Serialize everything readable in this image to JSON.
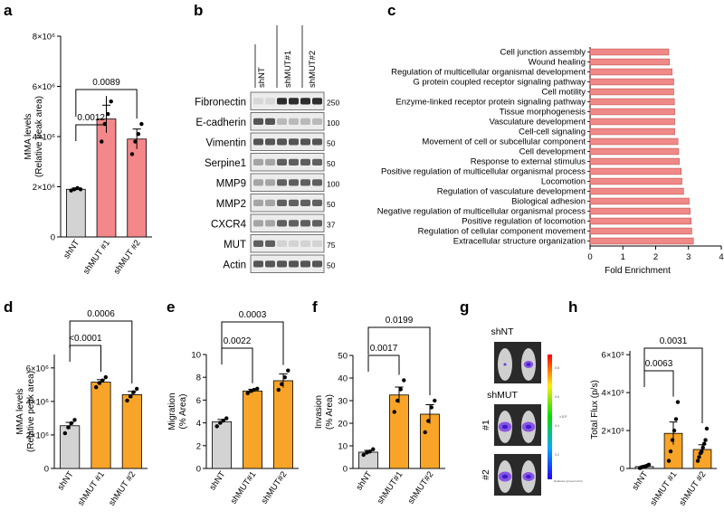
{
  "colors": {
    "gray": "#d3d3d3",
    "salmon": "#f4878a",
    "orange": "#f7a428",
    "bar_c": "#f08a88",
    "bar_c_stroke": "#c0504d"
  },
  "panel_letters": [
    "a",
    "b",
    "c",
    "d",
    "e",
    "f",
    "g",
    "h"
  ],
  "chart_data": [
    {
      "panel": "a",
      "type": "bar",
      "categories": [
        "shNT",
        "shMUT #1",
        "shMUT #2"
      ],
      "values": [
        1.9,
        4.7,
        3.9
      ],
      "errors": [
        0.05,
        0.55,
        0.4
      ],
      "points": [
        [
          1.85,
          1.9,
          1.95,
          1.9
        ],
        [
          3.8,
          4.5,
          4.9,
          5.4
        ],
        [
          3.3,
          3.8,
          4.1,
          4.5
        ]
      ],
      "ylabel": [
        "MMA levels",
        "(Relative peak area)"
      ],
      "yticks": [
        0,
        2,
        4,
        6,
        8
      ],
      "ytick_labels": [
        "0",
        "2×10⁶",
        "4×10⁶",
        "6×10⁶",
        "8×10⁶"
      ],
      "ylim": [
        0,
        8
      ],
      "comparisons": [
        {
          "from": 0,
          "to": 1,
          "label": "0.0012"
        },
        {
          "from": 0,
          "to": 2,
          "label": "0.0089"
        }
      ]
    },
    {
      "panel": "c",
      "type": "bar",
      "orientation": "horizontal",
      "xlabel": "Fold Enrichment",
      "xticks": [
        0,
        1,
        2,
        3,
        4
      ],
      "xlim": [
        0,
        4
      ],
      "categories": [
        "Cell junction assembly",
        "Wound healing",
        "Regulation of multicellular organismal development",
        "G protein coupled receptor signaling pathway",
        "Cell motility",
        "Enzyme-linked receptor protein signaling pathway",
        "Tissue morphogenesis",
        "Vasculature development",
        "Cell-cell signaling",
        "Movement of cell or subcellular component",
        "Cell development",
        "Response to external stimulus",
        "Positive regulation of multicellular organismal process",
        "Locomotion",
        "Regulation of vasculature development",
        "Biological adhesion",
        "Negative regulation of multicellular organismal process",
        "Positive regulation of locomotion",
        "Regulation of cellular component movement",
        "Extracellular structure organization"
      ],
      "values": [
        2.4,
        2.42,
        2.5,
        2.55,
        2.55,
        2.57,
        2.58,
        2.58,
        2.58,
        2.68,
        2.7,
        2.72,
        2.78,
        2.8,
        2.85,
        3.02,
        3.05,
        3.08,
        3.1,
        3.15
      ]
    },
    {
      "panel": "d",
      "type": "bar",
      "categories": [
        "shNT",
        "shMUT #1",
        "shMUT #2"
      ],
      "values": [
        2.55,
        5.15,
        4.4
      ],
      "errors": [
        0.2,
        0.15,
        0.2
      ],
      "points": [
        [
          2.1,
          2.45,
          2.7,
          2.9
        ],
        [
          4.85,
          5.1,
          5.25,
          5.45
        ],
        [
          4.05,
          4.3,
          4.55,
          4.75
        ]
      ],
      "ylabel": [
        "MMA levels",
        "(Relative peak area)"
      ],
      "yticks": [
        0,
        2,
        4,
        6
      ],
      "ytick_labels": [
        "0",
        "2×10⁶",
        "4×10⁶",
        "6×10⁶"
      ],
      "ylim": [
        0,
        6.8
      ],
      "comparisons": [
        {
          "from": 0,
          "to": 1,
          "label": "<0.0001"
        },
        {
          "from": 0,
          "to": 2,
          "label": "0.0006"
        }
      ]
    },
    {
      "panel": "e",
      "type": "bar",
      "categories": [
        "shNT",
        "shMUT#1",
        "shMUT#2"
      ],
      "values": [
        4.1,
        6.8,
        7.7
      ],
      "errors": [
        0.2,
        0.15,
        0.6
      ],
      "points": [
        [
          3.7,
          4.0,
          4.2,
          4.4
        ],
        [
          6.6,
          6.8,
          6.9,
          7.0
        ],
        [
          6.9,
          7.4,
          8.0,
          8.6
        ]
      ],
      "ylabel": [
        "Migration",
        "(% Area)"
      ],
      "yticks": [
        0,
        2,
        4,
        6,
        8,
        10
      ],
      "ytick_labels": [
        "0",
        "2",
        "4",
        "6",
        "8",
        "10"
      ],
      "ylim": [
        0,
        10
      ],
      "comparisons": [
        {
          "from": 0,
          "to": 1,
          "label": "0.0022"
        },
        {
          "from": 0,
          "to": 2,
          "label": "0.0003"
        }
      ]
    },
    {
      "panel": "f",
      "type": "bar",
      "categories": [
        "shNT",
        "shMUT#1",
        "shMUT#2"
      ],
      "values": [
        7.2,
        32.5,
        24.0
      ],
      "errors": [
        0.8,
        3.5,
        4.2
      ],
      "points": [
        [
          6.0,
          7.0,
          7.5,
          8.5
        ],
        [
          25,
          30,
          35,
          39
        ],
        [
          16,
          21,
          27,
          30
        ]
      ],
      "ylabel": [
        "Invasion",
        "(% Area)"
      ],
      "yticks": [
        0,
        10,
        20,
        30,
        40,
        50
      ],
      "ytick_labels": [
        "0",
        "10",
        "20",
        "30",
        "40",
        "50"
      ],
      "ylim": [
        0,
        50
      ],
      "comparisons": [
        {
          "from": 0,
          "to": 1,
          "label": "0.0017"
        },
        {
          "from": 0,
          "to": 2,
          "label": "0.0199"
        }
      ]
    },
    {
      "panel": "h",
      "type": "bar",
      "categories": [
        "shNT",
        "shMUT #1",
        "shMUT #2"
      ],
      "values": [
        0.1,
        1.85,
        1.0
      ],
      "errors": [
        0.04,
        0.6,
        0.25
      ],
      "points": [
        [
          0.02,
          0.05,
          0.08,
          0.1,
          0.12,
          0.15,
          0.2
        ],
        [
          0.4,
          0.9,
          1.5,
          2.0,
          2.6,
          3.5
        ],
        [
          0.4,
          0.6,
          0.8,
          0.9,
          1.1,
          1.3,
          1.5,
          2.1
        ]
      ],
      "ylabel": [
        "Total Flux (p/s)"
      ],
      "yticks": [
        0,
        2,
        4,
        6
      ],
      "ytick_labels": [
        "0",
        "2×10⁹",
        "4×10⁹",
        "6×10⁹"
      ],
      "ylim": [
        0,
        6.2
      ],
      "comparisons": [
        {
          "from": 0,
          "to": 1,
          "label": "0.0063"
        },
        {
          "from": 0,
          "to": 2,
          "label": "0.0031"
        }
      ]
    }
  ],
  "western_blot": {
    "lanes": [
      "shNT",
      "shMUT#1",
      "shMUT#2"
    ],
    "proteins": [
      "Fibronectin",
      "E-cadherin",
      "Vimentin",
      "Serpine1",
      "MMP9",
      "MMP2",
      "CXCR4",
      "MUT",
      "Actin"
    ],
    "markers": [
      "250",
      "100",
      "50",
      "50",
      "100",
      "50",
      "37",
      "75",
      "50"
    ]
  },
  "imaging": {
    "labels": [
      "shNT",
      "shMUT",
      "#1",
      "#2"
    ],
    "scale_ticks": [
      "0.8",
      "0.6",
      "0.4",
      "0.2"
    ],
    "scale_unit": "×10⁶",
    "scale_caption": "Radiance (p/sec/cm²/sr)"
  }
}
